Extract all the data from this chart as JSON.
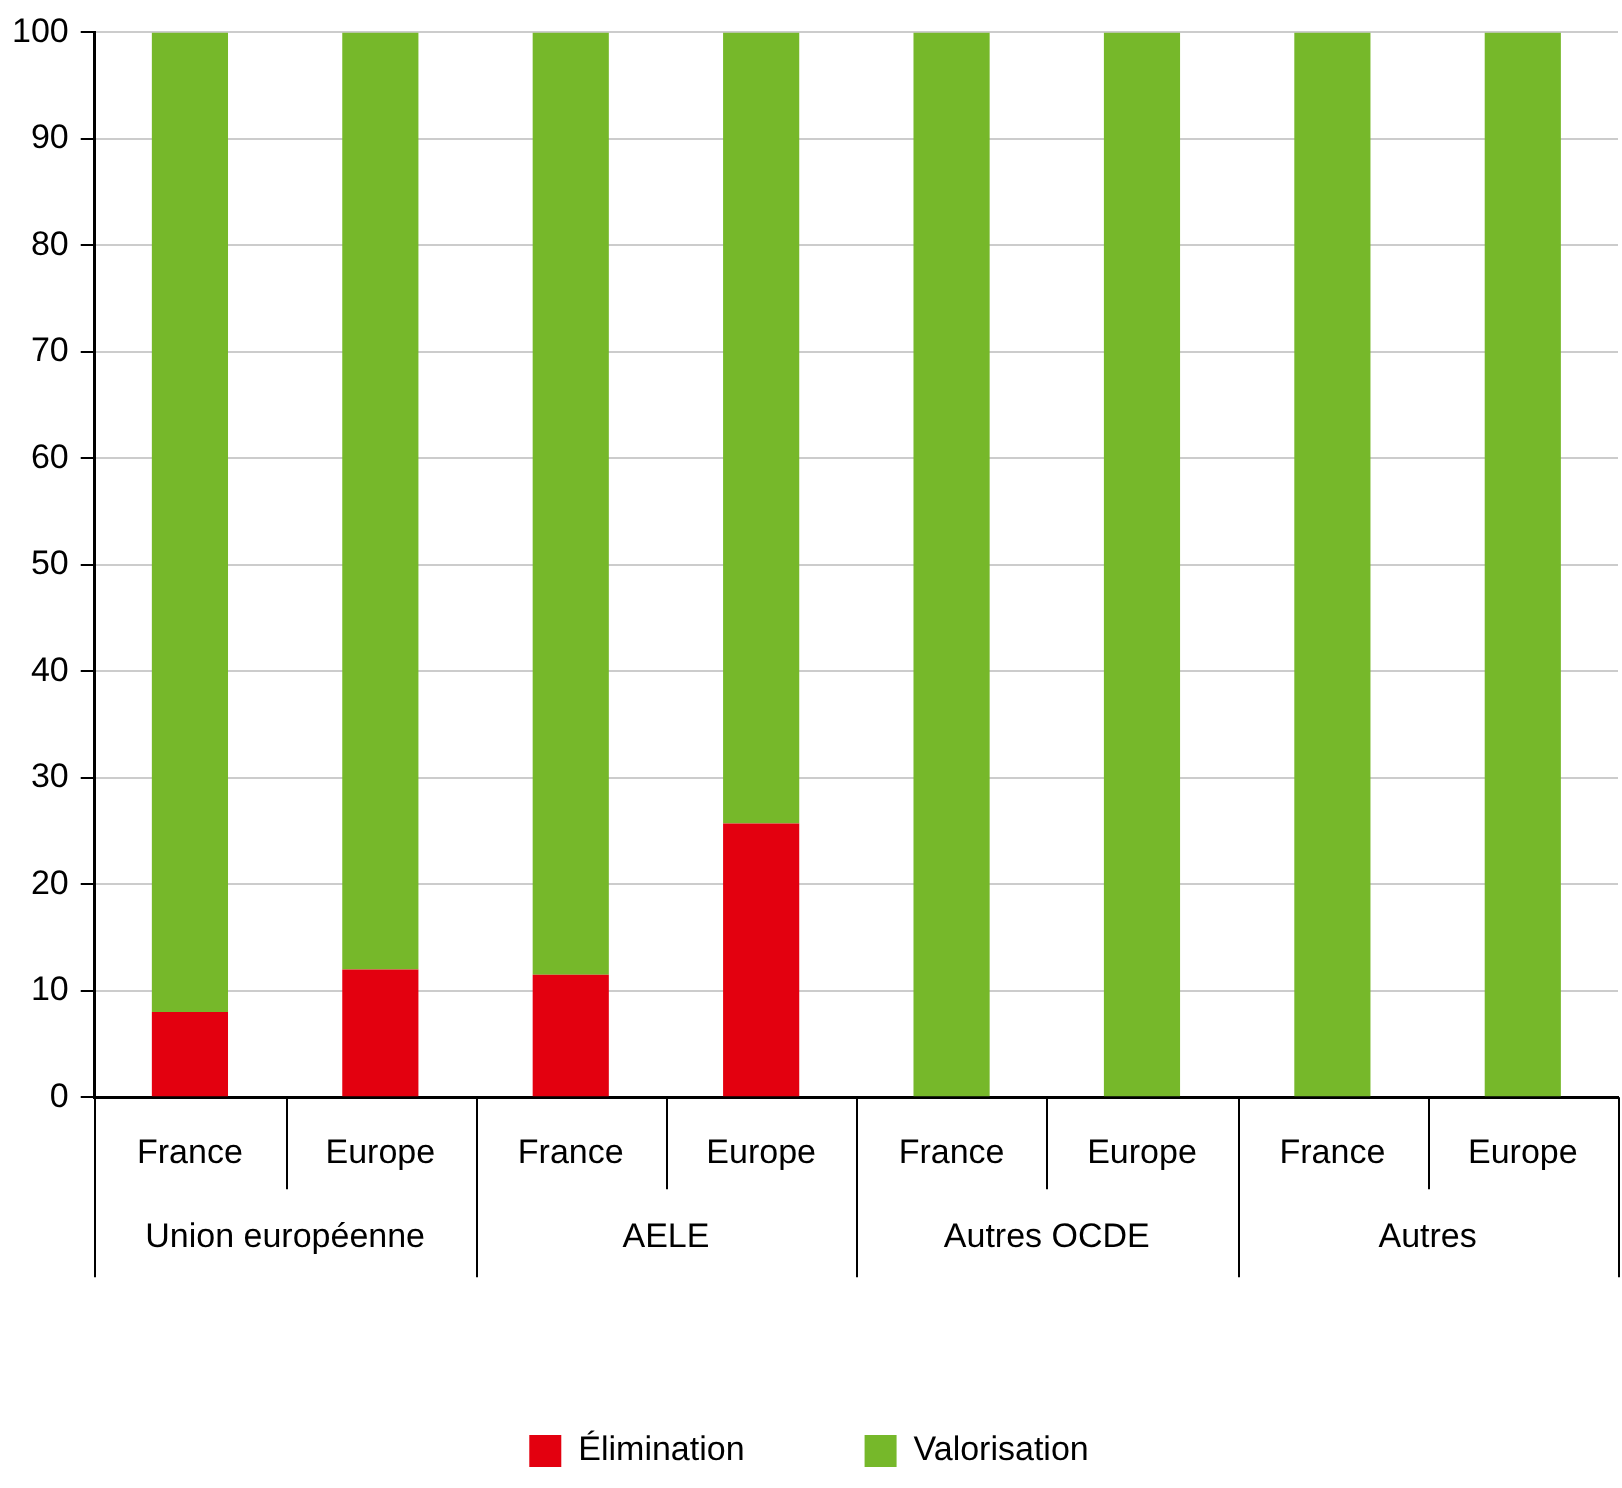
{
  "chart_data": {
    "type": "bar",
    "stacked": true,
    "categories": [
      "France",
      "Europe",
      "France",
      "Europe",
      "France",
      "Europe",
      "France",
      "Europe"
    ],
    "series": [
      {
        "name": "Élimination",
        "color": "#e3000f",
        "values": [
          8,
          12,
          11.5,
          25.7,
          0,
          0,
          0,
          0
        ]
      },
      {
        "name": "Valorisation",
        "color": "#76b82a",
        "values": [
          92,
          88,
          88.5,
          74.3,
          100,
          100,
          100,
          100
        ]
      }
    ],
    "annotations": [
      "Union européenne",
      "AELE",
      "Autres OCDE",
      "Autres"
    ],
    "ylim": [
      0,
      100
    ],
    "yticks": [
      0,
      10,
      20,
      30,
      40,
      50,
      60,
      70,
      80,
      90,
      100
    ],
    "grid": "y",
    "legend": "bottom"
  }
}
